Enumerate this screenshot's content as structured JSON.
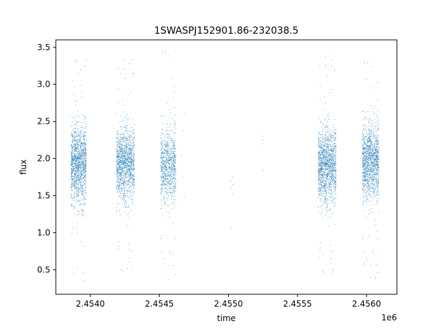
{
  "chart_data": {
    "type": "scatter",
    "title": "1SWASPJ152901.86-232038.5",
    "xlabel": "time",
    "ylabel": "flux",
    "x_offset_label": "1e6",
    "xlim": [
      2.45375,
      2.45622
    ],
    "ylim": [
      0.17,
      3.6
    ],
    "x_ticks": [
      2.454,
      2.4545,
      2.455,
      2.4555,
      2.456
    ],
    "x_tick_labels": [
      "2.4540",
      "2.4545",
      "2.4550",
      "2.4555",
      "2.4560"
    ],
    "y_ticks": [
      0.5,
      1.0,
      1.5,
      2.0,
      2.5,
      3.0,
      3.5
    ],
    "y_tick_labels": [
      "0.5",
      "1.0",
      "1.5",
      "2.0",
      "2.5",
      "3.0",
      "3.5"
    ],
    "grid": false,
    "marker_color": "#1f77b4",
    "series": [
      {
        "clusters": [
          {
            "x_range": [
              2.45386,
              2.45397
            ],
            "y_center": 1.92,
            "y_spread": 0.26,
            "y_min": 0.34,
            "y_max": 3.46,
            "count": 1400
          },
          {
            "x_range": [
              2.45419,
              2.45432
            ],
            "y_center": 1.92,
            "y_spread": 0.24,
            "y_min": 0.45,
            "y_max": 3.4,
            "count": 1400
          },
          {
            "x_range": [
              2.45451,
              2.45462
            ],
            "y_center": 1.9,
            "y_spread": 0.25,
            "y_min": 0.32,
            "y_max": 3.47,
            "count": 900
          },
          {
            "x_range": [
              2.45565,
              2.45578
            ],
            "y_center": 1.9,
            "y_spread": 0.25,
            "y_min": 0.43,
            "y_max": 3.45,
            "count": 1500
          },
          {
            "x_range": [
              2.45597,
              2.45609
            ],
            "y_center": 1.96,
            "y_spread": 0.25,
            "y_min": 0.35,
            "y_max": 3.32,
            "count": 1400
          }
        ],
        "sparse_points": [
          [
            2.45466,
            2.05
          ],
          [
            2.45467,
            2.38
          ],
          [
            2.45467,
            1.75
          ],
          [
            2.45468,
            2.6
          ],
          [
            2.45468,
            1.48
          ],
          [
            2.45502,
            1.6
          ],
          [
            2.45502,
            1.7
          ],
          [
            2.45503,
            1.52
          ],
          [
            2.45503,
            1.75
          ],
          [
            2.45503,
            1.65
          ],
          [
            2.45502,
            1.07
          ],
          [
            2.45525,
            2.2
          ],
          [
            2.45525,
            2.3
          ],
          [
            2.45525,
            2.25
          ],
          [
            2.45525,
            1.84
          ]
        ]
      }
    ]
  }
}
